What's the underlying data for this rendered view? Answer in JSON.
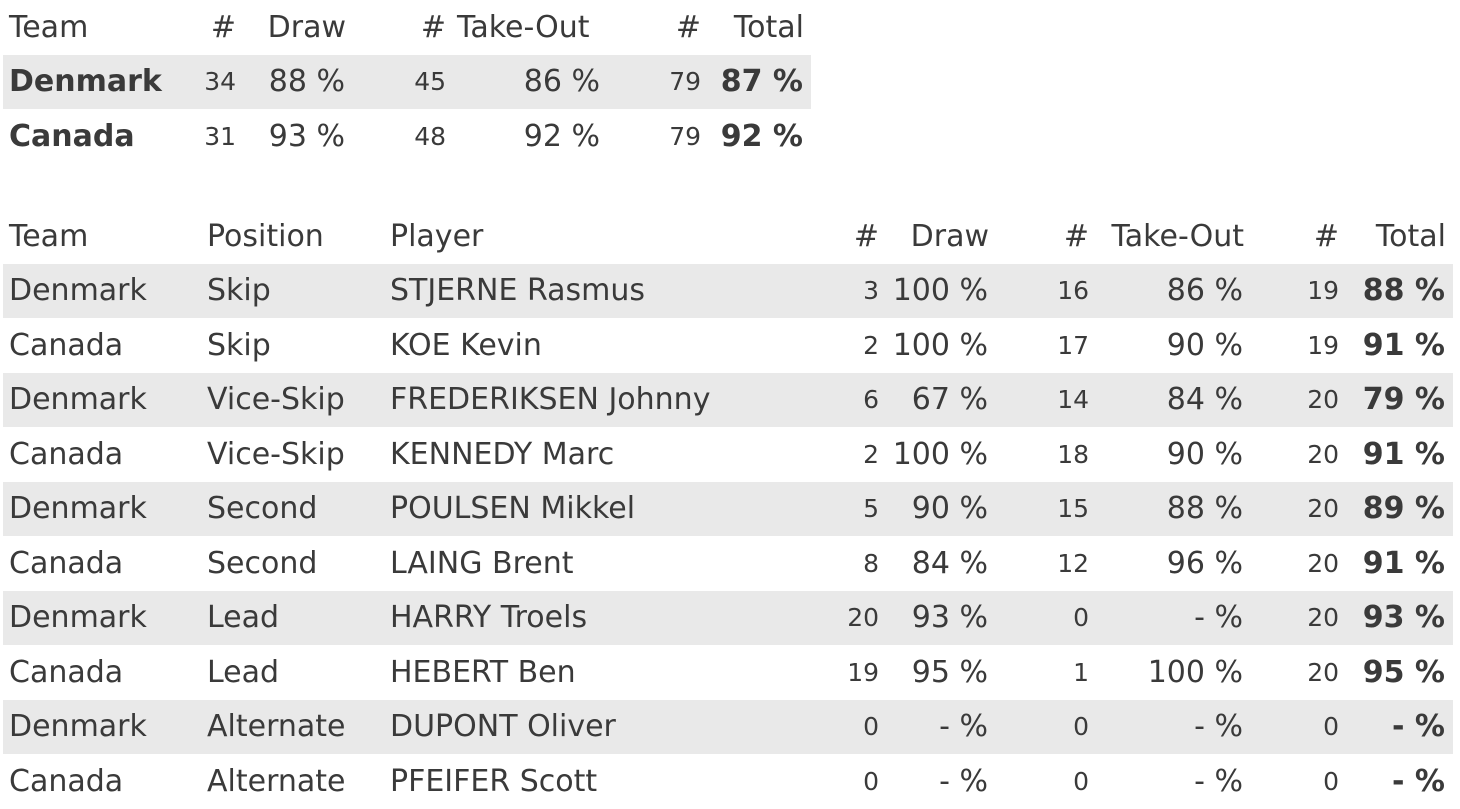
{
  "team_table": {
    "headers": {
      "team": "Team",
      "draw_count": "#",
      "draw": "Draw",
      "takeout_count": "#",
      "takeout": "Take-Out",
      "total_count": "#",
      "total": "Total"
    },
    "rows": [
      {
        "team": "Denmark",
        "draw_count": "34",
        "draw": "88 %",
        "takeout_count": "45",
        "takeout": "86 %",
        "total_count": "79",
        "total": "87 %"
      },
      {
        "team": "Canada",
        "draw_count": "31",
        "draw": "93 %",
        "takeout_count": "48",
        "takeout": "92 %",
        "total_count": "79",
        "total": "92 %"
      }
    ]
  },
  "player_table": {
    "headers": {
      "team": "Team",
      "position": "Position",
      "player": "Player",
      "draw_count": "#",
      "draw": "Draw",
      "takeout_count": "#",
      "takeout": "Take-Out",
      "total_count": "#",
      "total": "Total"
    },
    "rows": [
      {
        "team": "Denmark",
        "position": "Skip",
        "player": "STJERNE Rasmus",
        "draw_count": "3",
        "draw": "100 %",
        "takeout_count": "16",
        "takeout": "86 %",
        "total_count": "19",
        "total": "88 %"
      },
      {
        "team": "Canada",
        "position": "Skip",
        "player": "KOE Kevin",
        "draw_count": "2",
        "draw": "100 %",
        "takeout_count": "17",
        "takeout": "90 %",
        "total_count": "19",
        "total": "91 %"
      },
      {
        "team": "Denmark",
        "position": "Vice-Skip",
        "player": "FREDERIKSEN Johnny",
        "draw_count": "6",
        "draw": "67 %",
        "takeout_count": "14",
        "takeout": "84 %",
        "total_count": "20",
        "total": "79 %"
      },
      {
        "team": "Canada",
        "position": "Vice-Skip",
        "player": "KENNEDY Marc",
        "draw_count": "2",
        "draw": "100 %",
        "takeout_count": "18",
        "takeout": "90 %",
        "total_count": "20",
        "total": "91 %"
      },
      {
        "team": "Denmark",
        "position": "Second",
        "player": "POULSEN Mikkel",
        "draw_count": "5",
        "draw": "90 %",
        "takeout_count": "15",
        "takeout": "88 %",
        "total_count": "20",
        "total": "89 %"
      },
      {
        "team": "Canada",
        "position": "Second",
        "player": "LAING Brent",
        "draw_count": "8",
        "draw": "84 %",
        "takeout_count": "12",
        "takeout": "96 %",
        "total_count": "20",
        "total": "91 %"
      },
      {
        "team": "Denmark",
        "position": "Lead",
        "player": "HARRY Troels",
        "draw_count": "20",
        "draw": "93 %",
        "takeout_count": "0",
        "takeout": "- %",
        "total_count": "20",
        "total": "93 %"
      },
      {
        "team": "Canada",
        "position": "Lead",
        "player": "HEBERT Ben",
        "draw_count": "19",
        "draw": "95 %",
        "takeout_count": "1",
        "takeout": "100 %",
        "total_count": "20",
        "total": "95 %"
      },
      {
        "team": "Denmark",
        "position": "Alternate",
        "player": "DUPONT Oliver",
        "draw_count": "0",
        "draw": "- %",
        "takeout_count": "0",
        "takeout": "- %",
        "total_count": "0",
        "total": "- %"
      },
      {
        "team": "Canada",
        "position": "Alternate",
        "player": "PFEIFER Scott",
        "draw_count": "0",
        "draw": "- %",
        "takeout_count": "0",
        "takeout": "- %",
        "total_count": "0",
        "total": "- %"
      }
    ]
  }
}
